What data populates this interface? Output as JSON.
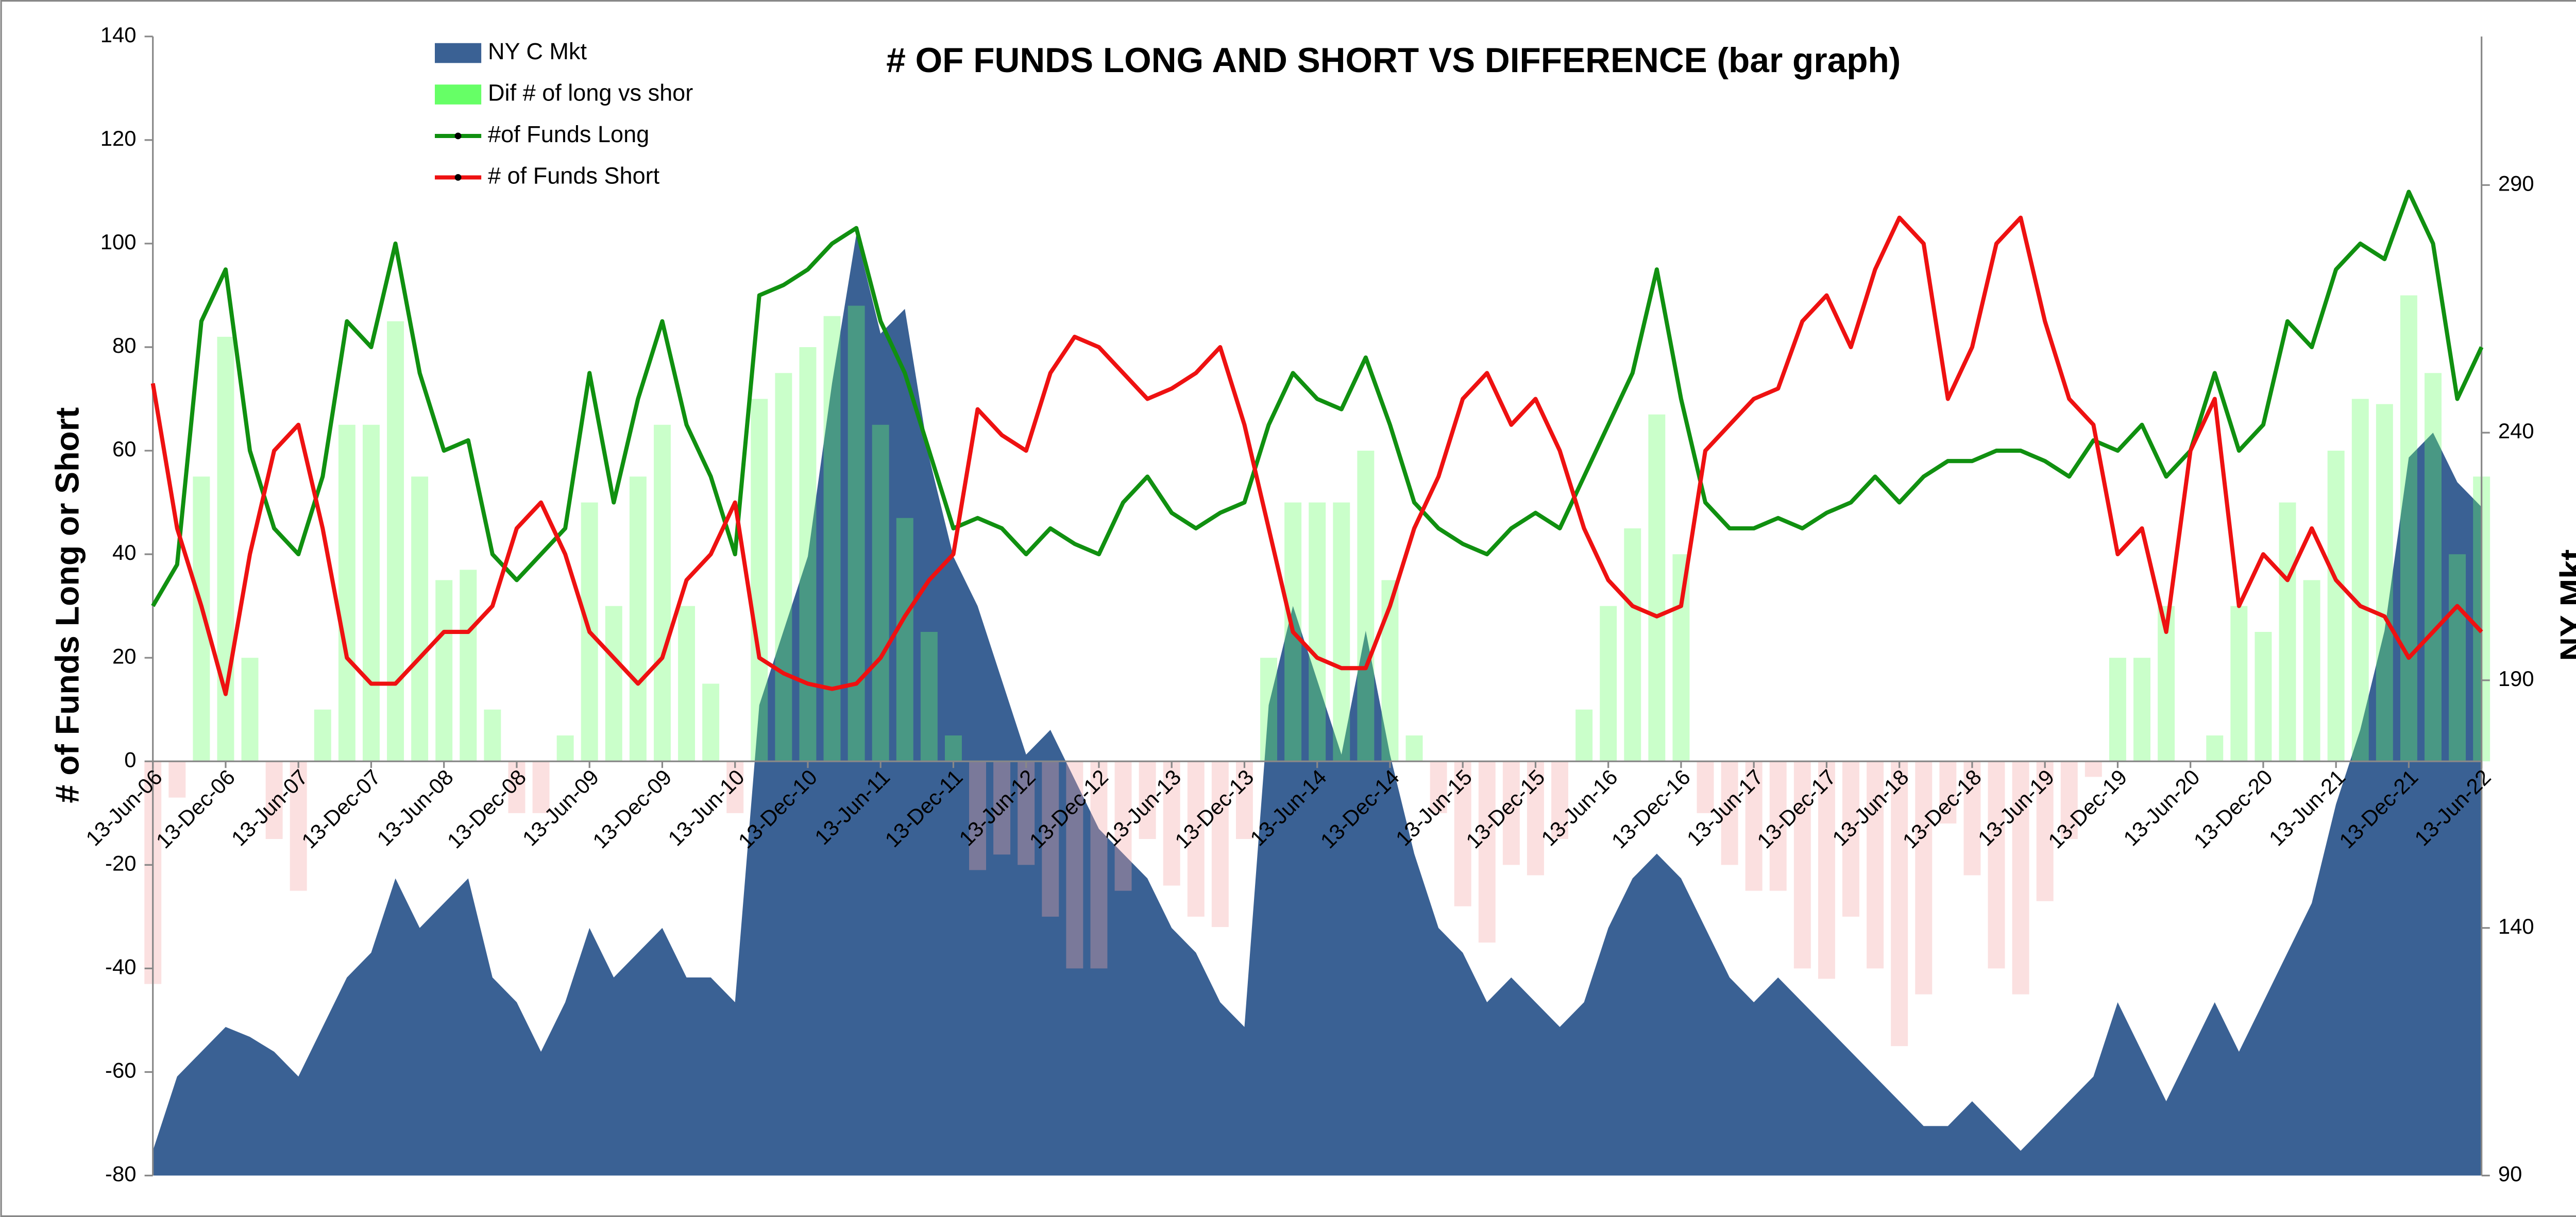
{
  "chart_data": {
    "type": "combo",
    "title": "# OF FUNDS LONG AND SHORT VS DIFFERENCE (bar graph)",
    "y_label": "# of Funds Long or Short",
    "y2_label": "NY Mkt",
    "categories": [
      "13-Jun-06",
      null,
      null,
      "13-Dec-06",
      null,
      null,
      "13-Jun-07",
      null,
      null,
      "13-Dec-07",
      null,
      null,
      "13-Jun-08",
      null,
      null,
      "13-Dec-08",
      null,
      null,
      "13-Jun-09",
      null,
      null,
      "13-Dec-09",
      null,
      null,
      "13-Jun-10",
      null,
      null,
      "13-Dec-10",
      null,
      null,
      "13-Jun-11",
      null,
      null,
      "13-Dec-11",
      null,
      null,
      "13-Jun-12",
      null,
      null,
      "13-Dec-12",
      null,
      null,
      "13-Jun-13",
      null,
      null,
      "13-Dec-13",
      null,
      null,
      "13-Jun-14",
      null,
      null,
      "13-Dec-14",
      null,
      null,
      "13-Jun-15",
      null,
      null,
      "13-Dec-15",
      null,
      null,
      "13-Jun-16",
      null,
      null,
      "13-Dec-16",
      null,
      null,
      "13-Jun-17",
      null,
      null,
      "13-Dec-17",
      null,
      null,
      "13-Jun-18",
      null,
      null,
      "13-Dec-18",
      null,
      null,
      "13-Jun-19",
      null,
      null,
      "13-Dec-19",
      null,
      null,
      "13-Jun-20",
      null,
      null,
      "13-Dec-20",
      null,
      null,
      "13-Jun-21",
      null,
      null,
      "13-Dec-21",
      null,
      null,
      "13-Jun-22"
    ],
    "series": [
      {
        "name": "NY C Mkt",
        "type": "area",
        "axis": "y2",
        "color": "#3a6194",
        "values": [
          95,
          110,
          115,
          120,
          118,
          115,
          110,
          120,
          130,
          135,
          150,
          140,
          145,
          150,
          130,
          125,
          115,
          125,
          140,
          130,
          135,
          140,
          130,
          130,
          125,
          185,
          200,
          215,
          250,
          280,
          260,
          265,
          235,
          215,
          205,
          190,
          175,
          180,
          170,
          160,
          155,
          150,
          140,
          135,
          125,
          120,
          185,
          205,
          190,
          175,
          200,
          175,
          155,
          140,
          135,
          125,
          130,
          125,
          120,
          125,
          140,
          150,
          155,
          150,
          140,
          130,
          125,
          130,
          125,
          120,
          115,
          110,
          105,
          100,
          100,
          105,
          100,
          95,
          100,
          105,
          110,
          125,
          115,
          105,
          115,
          125,
          115,
          125,
          135,
          145,
          165,
          180,
          200,
          235,
          240,
          230,
          225
        ]
      },
      {
        "name": "Dif # of long vs shor",
        "type": "bar",
        "color": "#66ff66",
        "negative_color": "#f4a6a6",
        "values": [
          -43,
          -7,
          55,
          82,
          20,
          -15,
          -25,
          10,
          65,
          65,
          85,
          55,
          35,
          37,
          10,
          -10,
          -10,
          5,
          50,
          30,
          55,
          65,
          30,
          15,
          -10,
          70,
          75,
          80,
          86,
          88,
          65,
          47,
          25,
          5,
          -21,
          -18,
          -20,
          -30,
          -40,
          -40,
          -25,
          -15,
          -24,
          -30,
          -32,
          -15,
          20,
          50,
          50,
          50,
          60,
          35,
          5,
          -10,
          -28,
          -35,
          -20,
          -22,
          -15,
          10,
          30,
          45,
          67,
          40,
          -10,
          -20,
          -25,
          -25,
          -40,
          -42,
          -30,
          -40,
          -55,
          -45,
          -12,
          -22,
          -40,
          -45,
          -27,
          -15,
          -3,
          20,
          20,
          30,
          0,
          5,
          30,
          25,
          50,
          35,
          60,
          70,
          69,
          90,
          75,
          40,
          55
        ]
      },
      {
        "name": "#of Funds Long",
        "type": "line",
        "color": "#109010",
        "values": [
          30,
          38,
          85,
          95,
          60,
          45,
          40,
          55,
          85,
          80,
          100,
          75,
          60,
          62,
          40,
          35,
          40,
          45,
          75,
          50,
          70,
          85,
          65,
          55,
          40,
          90,
          92,
          95,
          100,
          103,
          85,
          75,
          60,
          45,
          47,
          45,
          40,
          45,
          42,
          40,
          50,
          55,
          48,
          45,
          48,
          50,
          65,
          75,
          70,
          68,
          78,
          65,
          50,
          45,
          42,
          40,
          45,
          48,
          45,
          55,
          65,
          75,
          95,
          70,
          50,
          45,
          45,
          47,
          45,
          48,
          50,
          55,
          50,
          55,
          58,
          58,
          60,
          60,
          58,
          55,
          62,
          60,
          65,
          55,
          60,
          75,
          60,
          65,
          85,
          80,
          95,
          100,
          97,
          110,
          100,
          70,
          80
        ]
      },
      {
        "name": "# of Funds Short",
        "type": "line",
        "color": "#ee1111",
        "values": [
          73,
          45,
          30,
          13,
          40,
          60,
          65,
          45,
          20,
          15,
          15,
          20,
          25,
          25,
          30,
          45,
          50,
          40,
          25,
          20,
          15,
          20,
          35,
          40,
          50,
          20,
          17,
          15,
          14,
          15,
          20,
          28,
          35,
          40,
          68,
          63,
          60,
          75,
          82,
          80,
          75,
          70,
          72,
          75,
          80,
          65,
          45,
          25,
          20,
          18,
          18,
          30,
          45,
          55,
          70,
          75,
          65,
          70,
          60,
          45,
          35,
          30,
          28,
          30,
          60,
          65,
          70,
          72,
          85,
          90,
          80,
          95,
          105,
          100,
          70,
          80,
          100,
          105,
          85,
          70,
          65,
          40,
          45,
          25,
          60,
          70,
          30,
          40,
          35,
          45,
          35,
          30,
          28,
          20,
          25,
          30,
          25
        ]
      }
    ],
    "ylim": [
      -80,
      140
    ],
    "yticks": [
      -80,
      -60,
      -40,
      -20,
      0,
      20,
      40,
      60,
      80,
      100,
      120,
      140
    ],
    "y2lim": [
      90,
      320
    ],
    "y2ticks": [
      90,
      140,
      190,
      240,
      290
    ],
    "legend": "top-left"
  }
}
